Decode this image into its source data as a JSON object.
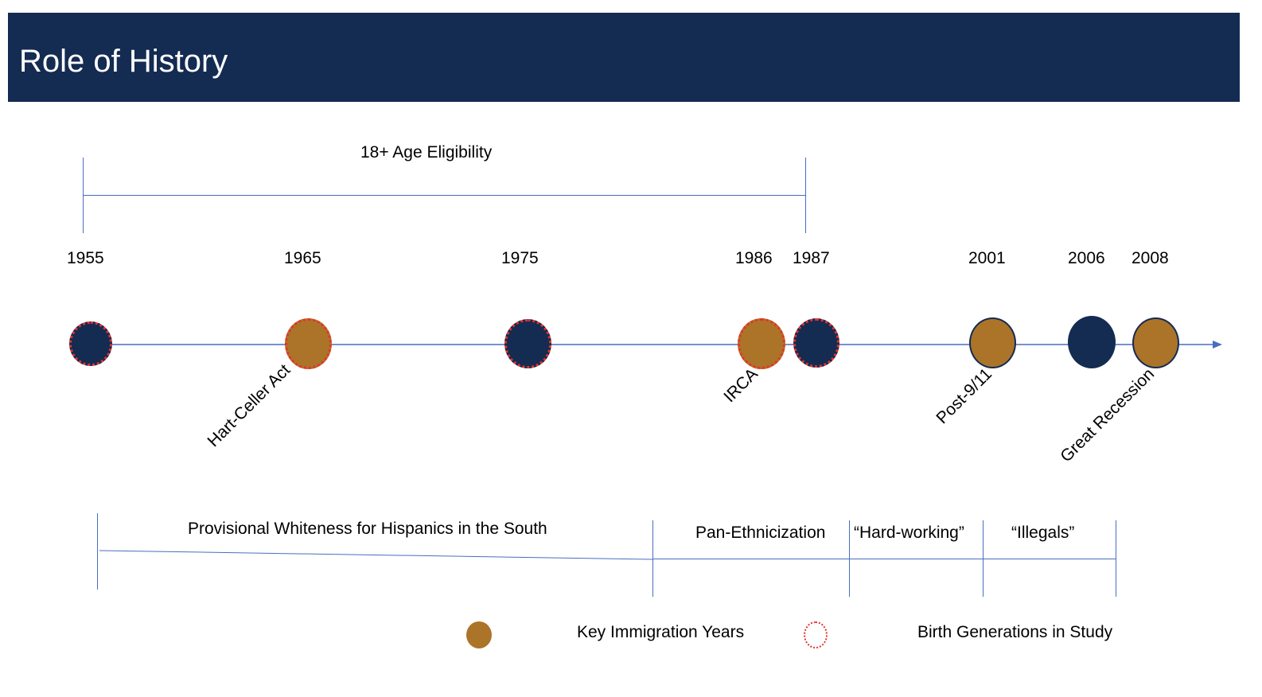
{
  "header": {
    "title": "Role of History"
  },
  "eligibility": {
    "label": "18+ Age Eligibility"
  },
  "years": [
    "1955",
    "1965",
    "1975",
    "1986",
    "1987",
    "2001",
    "2006",
    "2008"
  ],
  "events": {
    "hart_celler": "Hart-Celler Act",
    "irca": "IRCA",
    "post_911": "Post-9/11",
    "great_recession": "Great Recession"
  },
  "eras": {
    "provisional_whiteness": "Provisional Whiteness for Hispanics in the South",
    "pan_ethnicization": "Pan-Ethnicization",
    "hard_working": "“Hard-working”",
    "illegals": "“Illegals”"
  },
  "legend": {
    "key_years": "Key Immigration Years",
    "birth_generations": "Birth Generations in Study"
  },
  "colors": {
    "header_bg": "#142b52",
    "navy": "#142b52",
    "gold": "#ab7428",
    "birth_border": "#e6322c",
    "line": "#4a6dc0"
  }
}
